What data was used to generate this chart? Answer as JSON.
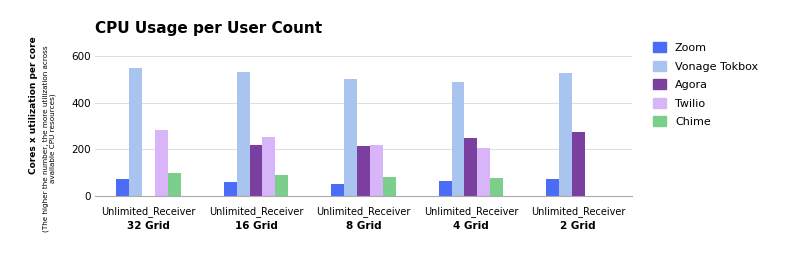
{
  "title": "CPU Usage per User Count",
  "ylabel_main": "Cores x utilization per core",
  "ylabel_sub": "(The higher the number, the more utilization across\navailable CPU resources)",
  "categories": [
    "Unlimited_Receiver\n32 Grid",
    "Unlimited_Receiver\n16 Grid",
    "Unlimited_Receiver\n8 Grid",
    "Unlimited_Receiver\n4 Grid",
    "Unlimited_Receiver\n2 Grid"
  ],
  "series": {
    "Zoom": [
      70,
      60,
      50,
      62,
      72
    ],
    "Vonage Tokbox": [
      548,
      532,
      500,
      490,
      525
    ],
    "Agora": [
      0,
      218,
      215,
      248,
      275
    ],
    "Twilio": [
      282,
      252,
      218,
      206,
      0
    ],
    "Chime": [
      98,
      90,
      82,
      78,
      0
    ]
  },
  "colors": {
    "Zoom": "#4a6cf7",
    "Vonage Tokbox": "#aac4f0",
    "Agora": "#7b3fa0",
    "Twilio": "#d8b4f8",
    "Chime": "#7acf8a"
  },
  "ylim": [
    0,
    650
  ],
  "yticks": [
    0,
    200,
    400,
    600
  ],
  "background_color": "#ffffff",
  "grid_color": "#dddddd"
}
